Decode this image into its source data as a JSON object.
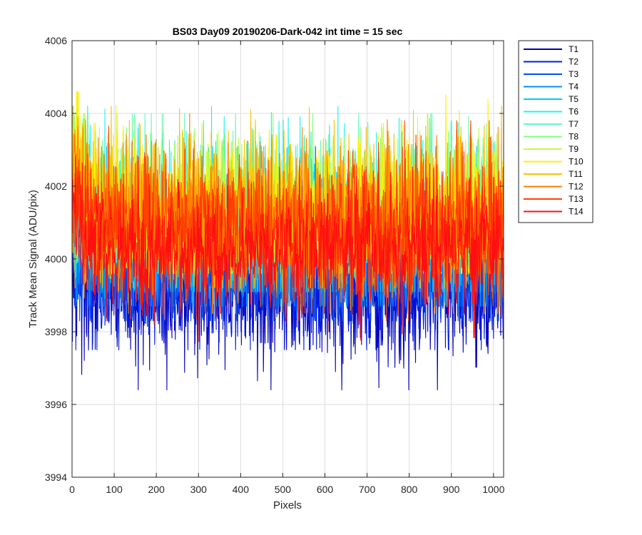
{
  "chart_data": {
    "type": "line",
    "title": "BS03 Day09 20190206-Dark-042 int time = 15 sec",
    "xlabel": "Pixels",
    "ylabel": "Track Mean Signal (ADU/pix)",
    "xlim": [
      0,
      1024
    ],
    "ylim": [
      3994,
      4006
    ],
    "xticks": [
      0,
      100,
      200,
      300,
      400,
      500,
      600,
      700,
      800,
      900,
      1000
    ],
    "yticks": [
      3994,
      3996,
      3998,
      4000,
      4002,
      4004,
      4006
    ],
    "grid": true,
    "legend_position": "outside-top-right",
    "series_points_per_trace": 1024,
    "series": [
      {
        "name": "T1",
        "color": "#0000B4",
        "mean": 3999.3,
        "noise": 1.0,
        "envelope": [
          -2.9,
          0.6
        ]
      },
      {
        "name": "T2",
        "color": "#0018E0",
        "mean": 3999.5,
        "noise": 1.0,
        "envelope": [
          -2.0,
          1.0
        ]
      },
      {
        "name": "T3",
        "color": "#0050F0",
        "mean": 3999.8,
        "noise": 1.0,
        "envelope": [
          -1.5,
          1.5
        ]
      },
      {
        "name": "T4",
        "color": "#0090F8",
        "mean": 4000.2,
        "noise": 1.1,
        "envelope": [
          -1.5,
          2.0
        ]
      },
      {
        "name": "T5",
        "color": "#00C8FF",
        "mean": 4000.6,
        "noise": 1.2,
        "envelope": [
          -1.5,
          2.5
        ]
      },
      {
        "name": "T6",
        "color": "#20F0F0",
        "mean": 4000.9,
        "noise": 1.2,
        "envelope": [
          -1.0,
          3.3
        ]
      },
      {
        "name": "T7",
        "color": "#60F8C0",
        "mean": 4001.0,
        "noise": 1.1,
        "envelope": [
          -1.0,
          3.0
        ]
      },
      {
        "name": "T8",
        "color": "#80FF80",
        "mean": 4001.0,
        "noise": 1.1,
        "envelope": [
          -1.0,
          3.0
        ]
      },
      {
        "name": "T9",
        "color": "#C0FF40",
        "mean": 4001.0,
        "noise": 1.1,
        "envelope": [
          -1.0,
          3.0
        ]
      },
      {
        "name": "T10",
        "color": "#FFEE00",
        "mean": 4001.1,
        "noise": 1.2,
        "envelope": [
          -1.5,
          3.5
        ]
      },
      {
        "name": "T11",
        "color": "#FFC000",
        "mean": 4001.2,
        "noise": 1.1,
        "envelope": [
          -2.0,
          3.0
        ]
      },
      {
        "name": "T12",
        "color": "#FF8000",
        "mean": 4001.0,
        "noise": 1.1,
        "envelope": [
          -2.5,
          3.0
        ]
      },
      {
        "name": "T13",
        "color": "#FF4000",
        "mean": 4000.8,
        "noise": 1.0,
        "envelope": [
          -2.5,
          3.0
        ]
      },
      {
        "name": "T14",
        "color": "#FF1010",
        "mean": 4000.3,
        "noise": 0.9,
        "envelope": [
          -3.2,
          2.5
        ]
      }
    ]
  }
}
